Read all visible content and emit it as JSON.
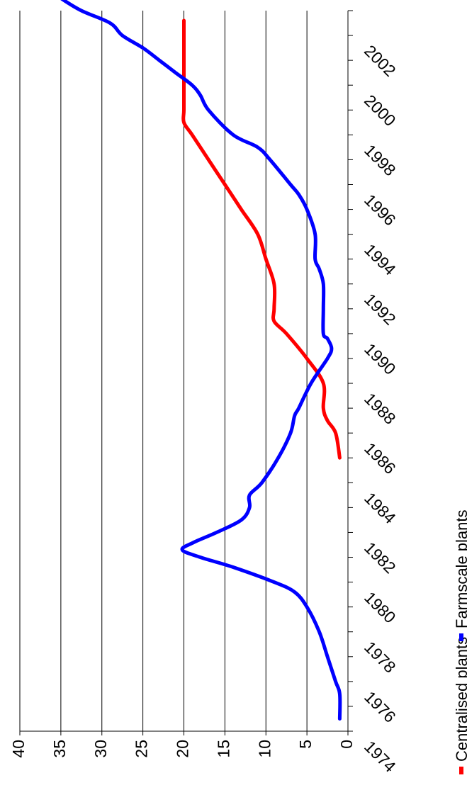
{
  "chart_data": {
    "type": "line",
    "title": "",
    "xlabel": "",
    "ylabel": "",
    "x": [
      1974,
      1975,
      1976,
      1977,
      1978,
      1979,
      1980,
      1981,
      1982,
      1983,
      1984,
      1985,
      1986,
      1987,
      1988,
      1989,
      1990,
      1991,
      1992,
      1993,
      1994,
      1995,
      1996,
      1997,
      1998,
      1999,
      2000,
      2001,
      2002,
      2003
    ],
    "x_ticks": [
      "1974",
      "1976",
      "1978",
      "1980",
      "1982",
      "1984",
      "1986",
      "1988",
      "1990",
      "1992",
      "1994",
      "1996",
      "1998",
      "2000",
      "2002"
    ],
    "ylim": [
      0,
      40
    ],
    "y_ticks": [
      "0",
      "5",
      "10",
      "15",
      "20",
      "25",
      "30",
      "35",
      "40"
    ],
    "grid": true,
    "legend_position": "bottom",
    "rotation": "chart rotated 90 degrees clockwise",
    "series": [
      {
        "name": "Centralised plants",
        "color": "#ff0000",
        "points": [
          [
            1985,
            1
          ],
          [
            1986,
            1.5
          ],
          [
            1986.5,
            2.5
          ],
          [
            1987,
            3
          ],
          [
            1988,
            3
          ],
          [
            1989,
            5
          ],
          [
            1990,
            7.5
          ],
          [
            1990.5,
            9
          ],
          [
            1991,
            9
          ],
          [
            1992,
            9
          ],
          [
            1993,
            10
          ],
          [
            1994,
            11
          ],
          [
            1995,
            13
          ],
          [
            1996,
            15
          ],
          [
            1997,
            17
          ],
          [
            1998,
            19
          ],
          [
            1998.5,
            20
          ],
          [
            1999,
            20
          ],
          [
            2000,
            20
          ],
          [
            2001,
            20
          ],
          [
            2002,
            20
          ],
          [
            2002.6,
            20
          ]
        ]
      },
      {
        "name": "Farmscale plants",
        "color": "#0000ff",
        "points": [
          [
            1974.5,
            1
          ],
          [
            1975.5,
            1
          ],
          [
            1976,
            1.5
          ],
          [
            1977,
            2.5
          ],
          [
            1978,
            3.5
          ],
          [
            1979,
            5
          ],
          [
            1979.6,
            6.5
          ],
          [
            1980,
            9
          ],
          [
            1980.6,
            14
          ],
          [
            1981,
            18
          ],
          [
            1981.3,
            20.2
          ],
          [
            1981.6,
            18.8
          ],
          [
            1982,
            16
          ],
          [
            1982.5,
            13
          ],
          [
            1983,
            12
          ],
          [
            1983.5,
            12
          ],
          [
            1984,
            10.5
          ],
          [
            1985,
            8.5
          ],
          [
            1986,
            7
          ],
          [
            1986.7,
            6.5
          ],
          [
            1987,
            6
          ],
          [
            1988,
            4.5
          ],
          [
            1989,
            2.5
          ],
          [
            1989.4,
            2
          ],
          [
            1989.8,
            2.5
          ],
          [
            1990,
            3
          ],
          [
            1991,
            3
          ],
          [
            1992,
            3
          ],
          [
            1992.6,
            3.5
          ],
          [
            1993,
            4
          ],
          [
            1994,
            4
          ],
          [
            1995,
            5
          ],
          [
            1995.6,
            6
          ],
          [
            1996,
            7
          ],
          [
            1997,
            9.5
          ],
          [
            1997.5,
            11
          ],
          [
            1998,
            14
          ],
          [
            1999,
            17
          ],
          [
            1999.6,
            18
          ],
          [
            2000,
            19
          ],
          [
            2000.5,
            21
          ],
          [
            2001,
            23
          ],
          [
            2001.5,
            25
          ],
          [
            2002,
            27.5
          ],
          [
            2002.5,
            29
          ],
          [
            2003,
            32.5
          ],
          [
            2003.5,
            35
          ],
          [
            2004,
            37
          ]
        ]
      }
    ]
  }
}
